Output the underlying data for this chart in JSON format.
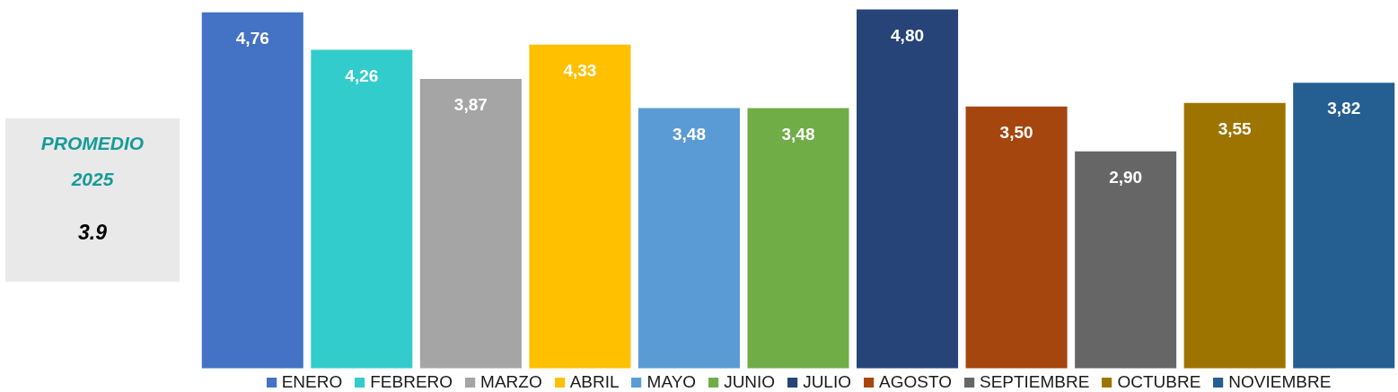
{
  "chart_data": {
    "type": "bar",
    "categories": [
      null
    ],
    "series": [
      {
        "name": "ENERO",
        "color": "#4472c4",
        "values": [
          4.76
        ],
        "value_labels": [
          "4,76"
        ]
      },
      {
        "name": "FEBRERO",
        "color": "#33cccc",
        "values": [
          4.26
        ],
        "value_labels": [
          "4,26"
        ]
      },
      {
        "name": "MARZO",
        "color": "#a5a5a5",
        "values": [
          3.87
        ],
        "value_labels": [
          "3,87"
        ]
      },
      {
        "name": "ABRIL",
        "color": "#ffc000",
        "values": [
          4.33
        ],
        "value_labels": [
          "4,33"
        ]
      },
      {
        "name": "MAYO",
        "color": "#5b9bd5",
        "values": [
          3.48
        ],
        "value_labels": [
          "3,48"
        ]
      },
      {
        "name": "JUNIO",
        "color": "#70ad47",
        "values": [
          3.48
        ],
        "value_labels": [
          "3,48"
        ]
      },
      {
        "name": "JULIO",
        "color": "#264478",
        "values": [
          4.8
        ],
        "value_labels": [
          "4,80"
        ]
      },
      {
        "name": "AGOSTO",
        "color": "#a5460f",
        "values": [
          3.5
        ],
        "value_labels": [
          "3,50"
        ]
      },
      {
        "name": "SEPTIEMBRE",
        "color": "#666666",
        "values": [
          2.9
        ],
        "value_labels": [
          "2,90"
        ]
      },
      {
        "name": "OCTUBRE",
        "color": "#9e7400",
        "values": [
          3.55
        ],
        "value_labels": [
          "3,55"
        ]
      },
      {
        "name": "NOVIEMBRE",
        "color": "#255e91",
        "values": [
          3.82
        ],
        "value_labels": [
          "3,82"
        ]
      }
    ],
    "legend": "bottom",
    "tick_labels": false,
    "annotations": [
      "PROMEDIO 2025",
      "3.9"
    ]
  }
}
